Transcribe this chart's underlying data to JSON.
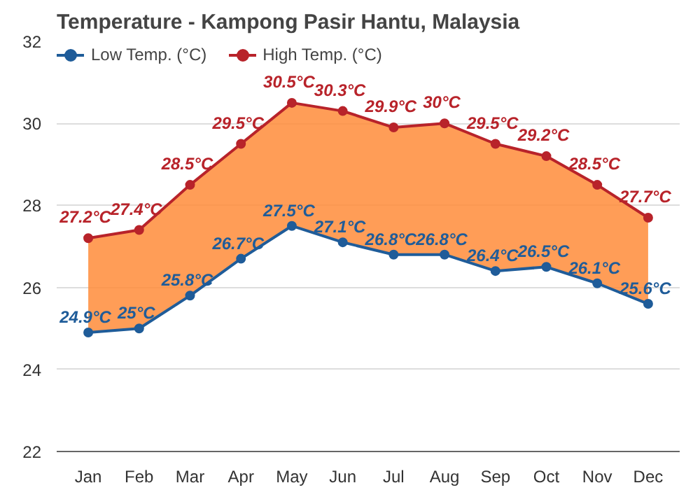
{
  "chart_data": {
    "type": "line",
    "title": "Temperature - Kampong Pasir Hantu, Malaysia",
    "categories": [
      "Jan",
      "Feb",
      "Mar",
      "Apr",
      "May",
      "Jun",
      "Jul",
      "Aug",
      "Sep",
      "Oct",
      "Nov",
      "Dec"
    ],
    "series": [
      {
        "name": "Low Temp. (°C)",
        "color": "#1f5c99",
        "values": [
          24.9,
          25,
          25.8,
          26.7,
          27.5,
          27.1,
          26.8,
          26.8,
          26.4,
          26.5,
          26.1,
          25.6
        ],
        "value_labels": [
          "24.9°C",
          "25°C",
          "25.8°C",
          "26.7°C",
          "27.5°C",
          "27.1°C",
          "26.8°C",
          "26.8°C",
          "26.4°C",
          "26.5°C",
          "26.1°C",
          "25.6°C"
        ]
      },
      {
        "name": "High Temp. (°C)",
        "color": "#b8232a",
        "values": [
          27.2,
          27.4,
          28.5,
          29.5,
          30.5,
          30.3,
          29.9,
          30,
          29.5,
          29.2,
          28.5,
          27.7
        ],
        "value_labels": [
          "27.2°C",
          "27.4°C",
          "28.5°C",
          "29.5°C",
          "30.5°C",
          "30.3°C",
          "29.9°C",
          "30°C",
          "29.5°C",
          "29.2°C",
          "28.5°C",
          "27.7°C"
        ],
        "lower": [
          24.9,
          25,
          25.8,
          26.7,
          27.5,
          27.1,
          26.8,
          26.8,
          26.4,
          26.5,
          26.1,
          25.6
        ],
        "upper": [
          27.2,
          27.4,
          28.5,
          29.5,
          30.5,
          30.3,
          29.9,
          30,
          29.5,
          29.2,
          28.5,
          27.7
        ]
      }
    ],
    "ylim": [
      22,
      32
    ],
    "yticks": [
      22,
      24,
      26,
      28,
      30,
      32
    ],
    "grid": "y",
    "legend": "top left",
    "marker": "circle",
    "line_style": "solid"
  }
}
